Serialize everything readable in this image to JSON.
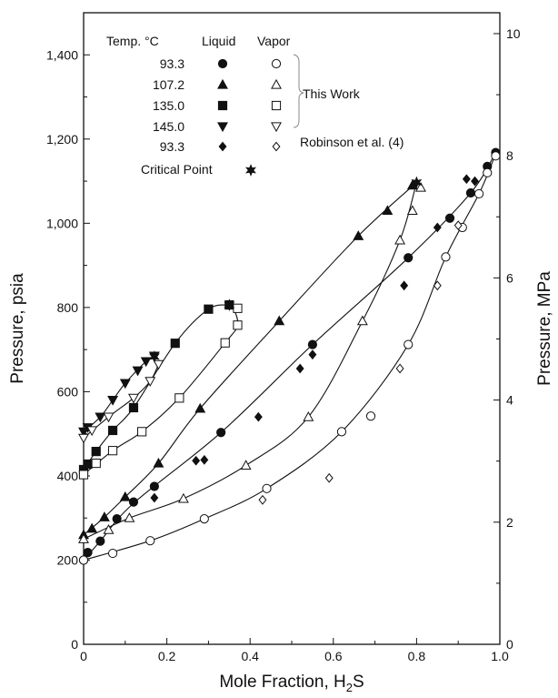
{
  "chart_data": {
    "type": "scatter",
    "xlabel_main": "Mole Fraction, H",
    "xlabel_sub": "2",
    "xlabel_tail": "S",
    "ylabel_left": "Pressure, psia",
    "ylabel_right": "Pressure, MPa",
    "xlim": [
      0,
      1.0
    ],
    "ylim_left": [
      0,
      1500
    ],
    "ylim_right": [
      0,
      10.342
    ],
    "x_ticks": [
      "0",
      "0.2",
      "0.4",
      "0.6",
      "0.8",
      "1.0"
    ],
    "y_left_ticks": [
      "0",
      "200",
      "400",
      "600",
      "800",
      "1,000",
      "1,200",
      "1,400"
    ],
    "y_right_ticks": [
      "0",
      "2",
      "4",
      "6",
      "8",
      "10"
    ],
    "legend": {
      "col_temp": "Temp. °C",
      "col_liquid": "Liquid",
      "col_vapor": "Vapor",
      "this_work": "This Work",
      "robinson": "Robinson et al. (4)",
      "critical_point": "Critical Point",
      "rows": [
        {
          "temp": "93.3",
          "liquid_marker": "circle-filled",
          "vapor_marker": "circle-open"
        },
        {
          "temp": "107.2",
          "liquid_marker": "triangle-up-filled",
          "vapor_marker": "triangle-up-open"
        },
        {
          "temp": "135.0",
          "liquid_marker": "square-filled",
          "vapor_marker": "square-open"
        },
        {
          "temp": "145.0",
          "liquid_marker": "triangle-down-filled",
          "vapor_marker": "triangle-down-open"
        },
        {
          "temp": "93.3",
          "liquid_marker": "diamond-filled",
          "vapor_marker": "diamond-open"
        }
      ]
    },
    "series": [
      {
        "name": "93.3",
        "phase": "Liquid",
        "marker": "circle-filled",
        "points": [
          [
            0.0,
            200
          ],
          [
            0.01,
            218
          ],
          [
            0.04,
            245
          ],
          [
            0.08,
            298
          ],
          [
            0.12,
            338
          ],
          [
            0.17,
            375
          ],
          [
            0.33,
            503
          ],
          [
            0.55,
            712
          ],
          [
            0.78,
            918
          ],
          [
            0.88,
            1012
          ],
          [
            0.93,
            1072
          ],
          [
            0.97,
            1135
          ],
          [
            0.99,
            1168
          ]
        ]
      },
      {
        "name": "93.3",
        "phase": "Vapor",
        "marker": "circle-open",
        "points": [
          [
            0.0,
            200
          ],
          [
            0.07,
            216
          ],
          [
            0.16,
            246
          ],
          [
            0.29,
            298
          ],
          [
            0.44,
            370
          ],
          [
            0.62,
            505
          ],
          [
            0.69,
            542
          ],
          [
            0.78,
            712
          ],
          [
            0.87,
            920
          ],
          [
            0.91,
            990
          ],
          [
            0.95,
            1070
          ],
          [
            0.97,
            1120
          ],
          [
            0.99,
            1160
          ]
        ]
      },
      {
        "name": "107.2",
        "phase": "Liquid",
        "marker": "triangle-up-filled",
        "points": [
          [
            0.0,
            260
          ],
          [
            0.02,
            275
          ],
          [
            0.05,
            302
          ],
          [
            0.1,
            350
          ],
          [
            0.18,
            430
          ],
          [
            0.28,
            560
          ],
          [
            0.47,
            768
          ],
          [
            0.66,
            970
          ],
          [
            0.73,
            1030
          ],
          [
            0.79,
            1090
          ]
        ]
      },
      {
        "name": "107.2",
        "phase": "Vapor",
        "marker": "triangle-up-open",
        "points": [
          [
            0.0,
            250
          ],
          [
            0.06,
            272
          ],
          [
            0.11,
            300
          ],
          [
            0.24,
            346
          ],
          [
            0.39,
            425
          ],
          [
            0.54,
            540
          ],
          [
            0.67,
            768
          ],
          [
            0.76,
            960
          ],
          [
            0.79,
            1030
          ],
          [
            0.81,
            1085
          ]
        ]
      },
      {
        "name": "135.0",
        "phase": "Liquid",
        "marker": "square-filled",
        "points": [
          [
            0.0,
            415
          ],
          [
            0.01,
            428
          ],
          [
            0.03,
            458
          ],
          [
            0.07,
            508
          ],
          [
            0.12,
            562
          ],
          [
            0.22,
            715
          ],
          [
            0.3,
            796
          ],
          [
            0.35,
            806
          ]
        ]
      },
      {
        "name": "135.0",
        "phase": "Vapor",
        "marker": "square-open",
        "points": [
          [
            0.0,
            403
          ],
          [
            0.03,
            430
          ],
          [
            0.07,
            460
          ],
          [
            0.14,
            505
          ],
          [
            0.23,
            585
          ],
          [
            0.34,
            716
          ],
          [
            0.37,
            758
          ],
          [
            0.37,
            798
          ]
        ]
      },
      {
        "name": "145.0",
        "phase": "Liquid",
        "marker": "triangle-down-filled",
        "points": [
          [
            0.0,
            505
          ],
          [
            0.01,
            515
          ],
          [
            0.04,
            540
          ],
          [
            0.07,
            580
          ],
          [
            0.1,
            620
          ],
          [
            0.13,
            650
          ],
          [
            0.15,
            672
          ],
          [
            0.17,
            685
          ]
        ]
      },
      {
        "name": "145.0",
        "phase": "Vapor",
        "marker": "triangle-down-open",
        "points": [
          [
            0.0,
            490
          ],
          [
            0.02,
            508
          ],
          [
            0.06,
            540
          ],
          [
            0.12,
            585
          ],
          [
            0.16,
            625
          ],
          [
            0.18,
            665
          ]
        ]
      },
      {
        "name": "93.3",
        "phase": "Liquid",
        "marker": "diamond-filled",
        "points": [
          [
            0.17,
            348
          ],
          [
            0.27,
            436
          ],
          [
            0.29,
            438
          ],
          [
            0.42,
            540
          ],
          [
            0.52,
            655
          ],
          [
            0.55,
            688
          ],
          [
            0.77,
            852
          ],
          [
            0.85,
            990
          ],
          [
            0.92,
            1105
          ],
          [
            0.94,
            1100
          ]
        ]
      },
      {
        "name": "93.3",
        "phase": "Vapor",
        "marker": "diamond-open",
        "points": [
          [
            0.43,
            343
          ],
          [
            0.59,
            395
          ],
          [
            0.76,
            655
          ],
          [
            0.85,
            852
          ],
          [
            0.9,
            995
          ]
        ]
      },
      {
        "name": "Critical Point",
        "phase": "Critical",
        "marker": "star",
        "points": [
          [
            0.8,
            1097
          ],
          [
            0.35,
            806
          ],
          [
            0.17,
            683
          ]
        ]
      }
    ],
    "curves": [
      {
        "name": "93.3 bubble",
        "points": [
          [
            0.0,
            200
          ],
          [
            0.04,
            245
          ],
          [
            0.12,
            335
          ],
          [
            0.33,
            503
          ],
          [
            0.55,
            712
          ],
          [
            0.78,
            918
          ],
          [
            0.93,
            1072
          ],
          [
            0.99,
            1168
          ]
        ]
      },
      {
        "name": "93.3 dew",
        "points": [
          [
            0.0,
            200
          ],
          [
            0.16,
            246
          ],
          [
            0.29,
            298
          ],
          [
            0.44,
            370
          ],
          [
            0.62,
            505
          ],
          [
            0.78,
            712
          ],
          [
            0.87,
            920
          ],
          [
            0.95,
            1070
          ],
          [
            0.99,
            1165
          ]
        ]
      },
      {
        "name": "107.2 bubble",
        "points": [
          [
            0.0,
            260
          ],
          [
            0.05,
            302
          ],
          [
            0.1,
            350
          ],
          [
            0.18,
            430
          ],
          [
            0.28,
            560
          ],
          [
            0.47,
            768
          ],
          [
            0.66,
            970
          ],
          [
            0.8,
            1097
          ]
        ]
      },
      {
        "name": "107.2 dew",
        "points": [
          [
            0.0,
            250
          ],
          [
            0.11,
            300
          ],
          [
            0.24,
            346
          ],
          [
            0.39,
            425
          ],
          [
            0.54,
            540
          ],
          [
            0.67,
            768
          ],
          [
            0.76,
            960
          ],
          [
            0.8,
            1097
          ]
        ]
      },
      {
        "name": "135.0 bubble",
        "points": [
          [
            0.0,
            415
          ],
          [
            0.03,
            458
          ],
          [
            0.07,
            508
          ],
          [
            0.12,
            562
          ],
          [
            0.22,
            715
          ],
          [
            0.3,
            796
          ],
          [
            0.35,
            806
          ]
        ]
      },
      {
        "name": "135.0 dew",
        "points": [
          [
            0.0,
            403
          ],
          [
            0.07,
            460
          ],
          [
            0.14,
            505
          ],
          [
            0.23,
            585
          ],
          [
            0.34,
            716
          ],
          [
            0.37,
            758
          ],
          [
            0.36,
            800
          ]
        ]
      },
      {
        "name": "145.0 bubble",
        "points": [
          [
            0.0,
            505
          ],
          [
            0.04,
            540
          ],
          [
            0.07,
            580
          ],
          [
            0.1,
            620
          ],
          [
            0.15,
            672
          ],
          [
            0.17,
            683
          ]
        ]
      },
      {
        "name": "145.0 dew",
        "points": [
          [
            0.0,
            490
          ],
          [
            0.06,
            540
          ],
          [
            0.12,
            585
          ],
          [
            0.16,
            625
          ],
          [
            0.18,
            665
          ]
        ]
      }
    ]
  }
}
